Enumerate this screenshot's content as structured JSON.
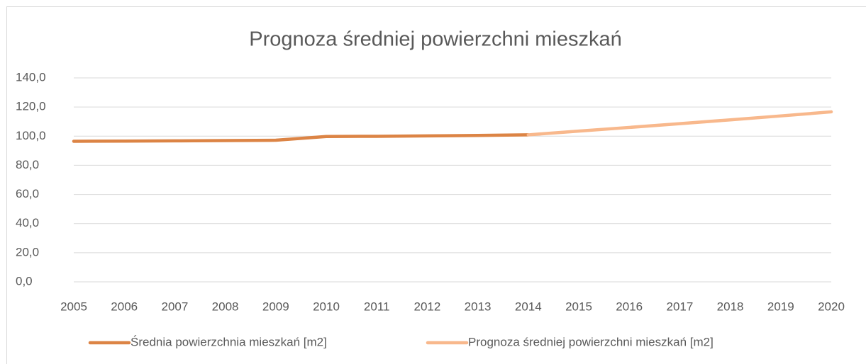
{
  "chart_data": {
    "type": "line",
    "title": "Prognoza średniej powierzchni mieszkań",
    "categories": [
      "2005",
      "2006",
      "2007",
      "2008",
      "2009",
      "2010",
      "2011",
      "2012",
      "2013",
      "2014",
      "2015",
      "2016",
      "2017",
      "2018",
      "2019",
      "2020"
    ],
    "series": [
      {
        "name": "Średnia powierzchnia mieszkań  [m2]",
        "color": "#dc8445",
        "values": [
          96.5,
          96.6,
          96.8,
          97.0,
          97.2,
          99.8,
          99.9,
          100.2,
          100.5,
          100.9,
          null,
          null,
          null,
          null,
          null,
          null
        ]
      },
      {
        "name": "Prognoza średniej powierzchni mieszkań  [m2]",
        "color": "#f8b88c",
        "values": [
          null,
          null,
          null,
          null,
          null,
          null,
          null,
          null,
          null,
          100.9,
          103.5,
          106.0,
          108.6,
          111.2,
          113.9,
          116.7
        ]
      }
    ],
    "ylim": [
      0,
      140
    ],
    "yticks": [
      {
        "value": 0,
        "label": "0,0"
      },
      {
        "value": 20,
        "label": "20,0"
      },
      {
        "value": 40,
        "label": "40,0"
      },
      {
        "value": 60,
        "label": "60,0"
      },
      {
        "value": 80,
        "label": "80,0"
      },
      {
        "value": 100,
        "label": "100,0"
      },
      {
        "value": 120,
        "label": "120,0"
      },
      {
        "value": 140,
        "label": "140,0"
      }
    ],
    "grid": true,
    "legend": "bottom"
  }
}
